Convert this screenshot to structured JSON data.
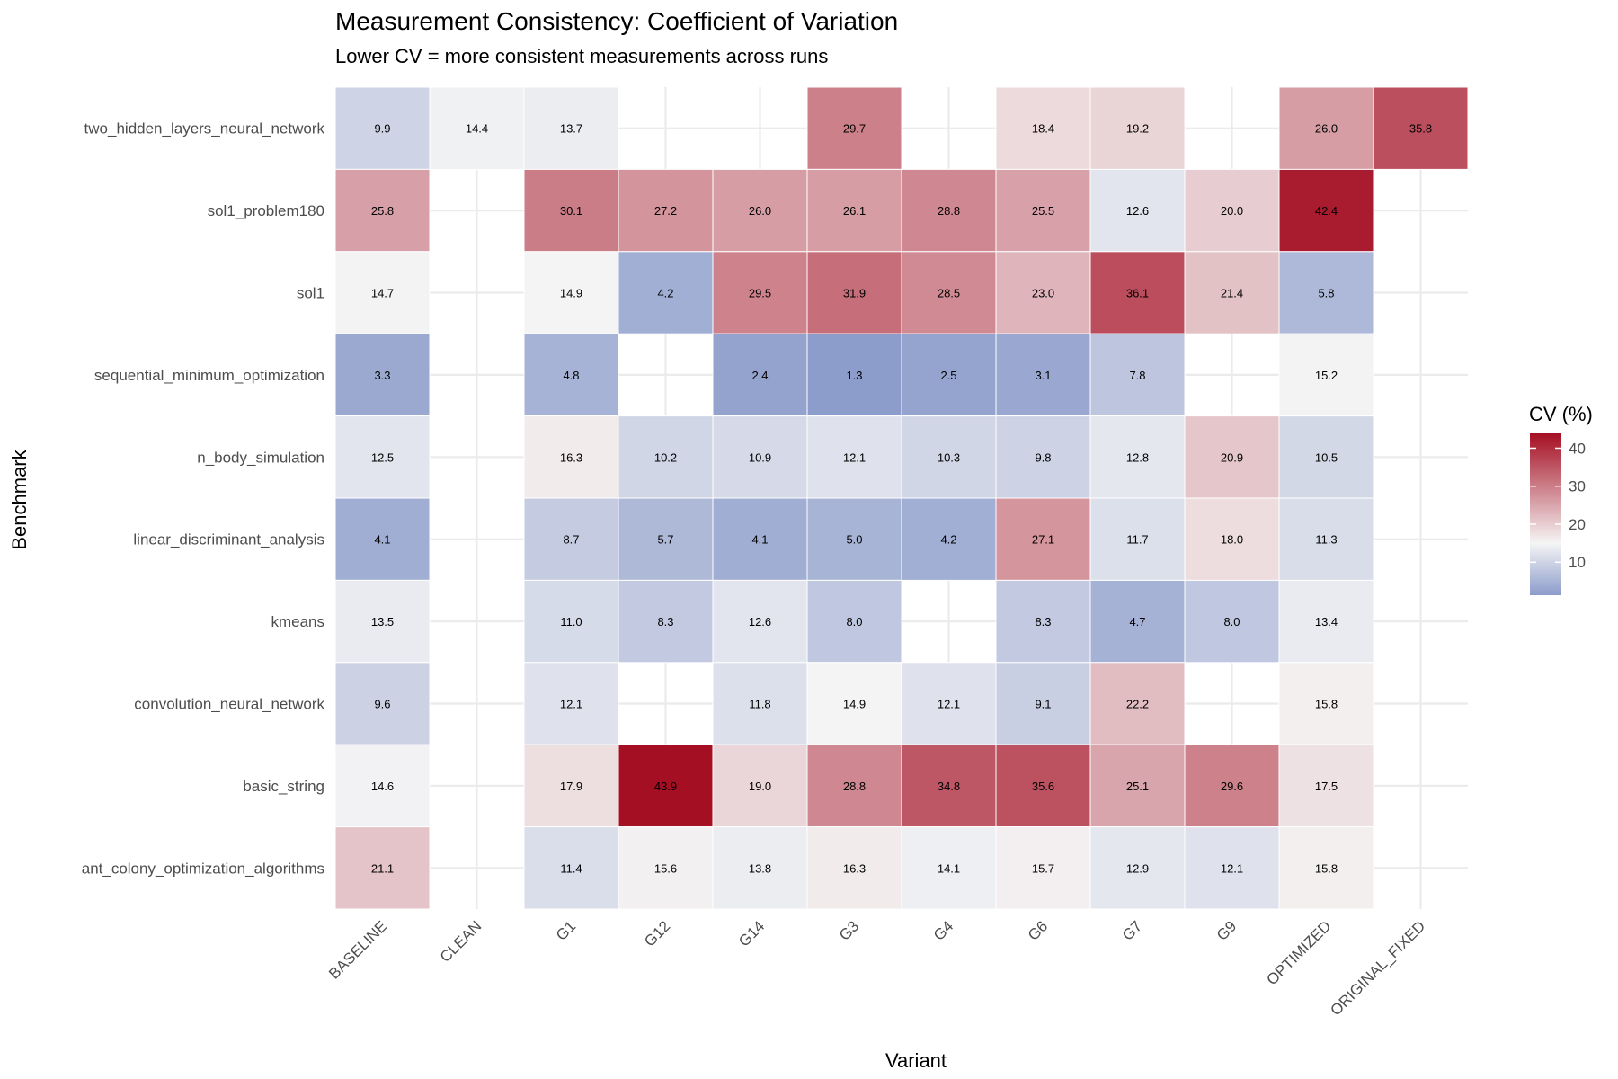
{
  "chart_data": {
    "type": "heatmap",
    "title": "Measurement Consistency: Coefficient of Variation",
    "subtitle": "Lower CV = more consistent measurements across runs",
    "xlabel": "Variant",
    "ylabel": "Benchmark",
    "x_categories": [
      "BASELINE",
      "CLEAN",
      "G1",
      "G12",
      "G14",
      "G3",
      "G4",
      "G6",
      "G7",
      "G9",
      "OPTIMIZED",
      "ORIGINAL_FIXED"
    ],
    "y_categories": [
      "two_hidden_layers_neural_network",
      "sol1_problem180",
      "sol1",
      "sequential_minimum_optimization",
      "n_body_simulation",
      "linear_discriminant_analysis",
      "kmeans",
      "convolution_neural_network",
      "basic_string",
      "ant_colony_optimization_algorithms"
    ],
    "values": [
      [
        9.9,
        14.4,
        13.7,
        null,
        null,
        29.7,
        null,
        18.4,
        19.2,
        null,
        26.0,
        35.8
      ],
      [
        25.8,
        null,
        30.1,
        27.2,
        26.0,
        26.1,
        28.8,
        25.5,
        12.6,
        20.0,
        42.4,
        null
      ],
      [
        14.7,
        null,
        14.9,
        4.2,
        29.5,
        31.9,
        28.5,
        23.0,
        36.1,
        21.4,
        5.8,
        null
      ],
      [
        3.3,
        null,
        4.8,
        null,
        2.4,
        1.3,
        2.5,
        3.1,
        7.8,
        null,
        15.2,
        null
      ],
      [
        12.5,
        null,
        16.3,
        10.2,
        10.9,
        12.1,
        10.3,
        9.8,
        12.8,
        20.9,
        10.5,
        null
      ],
      [
        4.1,
        null,
        8.7,
        5.7,
        4.1,
        5.0,
        4.2,
        27.1,
        11.7,
        18.0,
        11.3,
        null
      ],
      [
        13.5,
        null,
        11.0,
        8.3,
        12.6,
        8.0,
        null,
        8.3,
        4.7,
        8.0,
        13.4,
        null
      ],
      [
        9.6,
        null,
        12.1,
        null,
        11.8,
        14.9,
        12.1,
        9.1,
        22.2,
        null,
        15.8,
        null
      ],
      [
        14.6,
        null,
        17.9,
        43.9,
        19.0,
        28.8,
        34.8,
        35.6,
        25.1,
        29.6,
        17.5,
        null
      ],
      [
        21.1,
        null,
        11.4,
        15.6,
        13.8,
        16.3,
        14.1,
        15.7,
        12.9,
        12.1,
        15.8,
        null
      ]
    ],
    "legend": {
      "title": "CV (%)",
      "position": "right",
      "ticks": [
        "10",
        "20",
        "30",
        "40"
      ],
      "range": [
        1.3,
        43.9
      ],
      "midpoint": 15,
      "low_color": "#8c9ccb",
      "mid_color": "#f5f5f5",
      "high_color": "#a50f23"
    },
    "grid": true
  }
}
